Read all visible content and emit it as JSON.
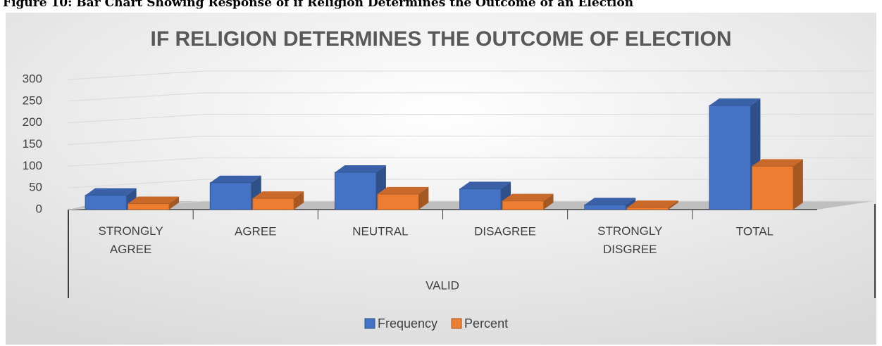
{
  "caption": "Figure 10: Bar Chart Showing Response of if Religion Determines the Outcome of an Election",
  "chart_data": {
    "type": "bar3d",
    "title": "IF RELIGION DETERMINES THE OUTCOME OF ELECTION",
    "x_label": "VALID",
    "categories": [
      "STRONGLY AGREE",
      "AGREE",
      "NEUTRAL",
      "DISAGREE",
      "STRONGLY DISGREE",
      "TOTAL"
    ],
    "series": [
      {
        "name": "Frequency",
        "color": "#4472c4",
        "values": [
          33,
          62,
          86,
          48,
          11,
          240
        ]
      },
      {
        "name": "Percent",
        "color": "#ed7d31",
        "values": [
          13.8,
          25.8,
          35.8,
          20,
          4.6,
          100
        ]
      }
    ],
    "ylim": [
      0,
      300
    ],
    "yticks": [
      0,
      50,
      100,
      150,
      200,
      250,
      300
    ],
    "grid": true,
    "legend": "bottom"
  }
}
